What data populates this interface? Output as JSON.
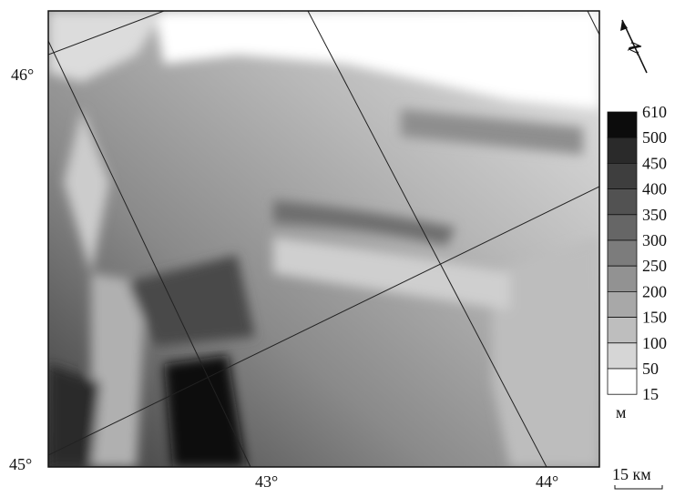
{
  "map": {
    "lat_labels": [
      "46°",
      "45°"
    ],
    "lon_labels": [
      "43°",
      "44°"
    ],
    "north_arrow": {
      "label": "N"
    },
    "scale_bar": {
      "label": "15 км"
    },
    "legend": {
      "levels": [
        610,
        500,
        450,
        400,
        350,
        300,
        250,
        200,
        150,
        100,
        50,
        15
      ],
      "colors": [
        "#0c0c0c",
        "#2a2a2a",
        "#3e3e3e",
        "#525252",
        "#666666",
        "#7c7c7c",
        "#929292",
        "#a8a8a8",
        "#bebebe",
        "#d6d6d6",
        "#ffffff"
      ],
      "unit": "м"
    }
  }
}
